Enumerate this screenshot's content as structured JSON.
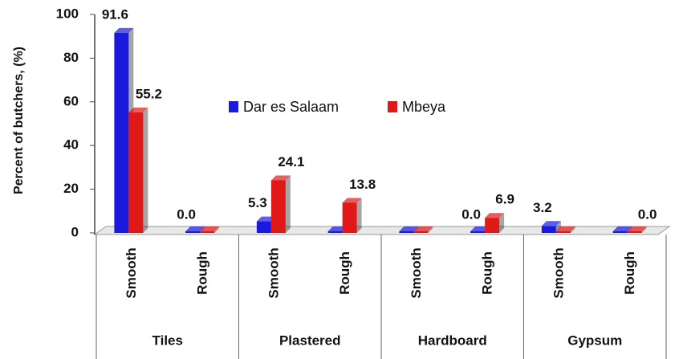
{
  "chart_data": {
    "type": "bar",
    "y_label": "Percent of butchers, (%)",
    "groups": [
      "Tiles",
      "Plastered",
      "Hardboard",
      "Gypsum"
    ],
    "categories": [
      "Smooth",
      "Rough",
      "Smooth",
      "Rough",
      "Smooth",
      "Rough",
      "Smooth",
      "Rough"
    ],
    "series": [
      {
        "name": "Dar es Salaam",
        "color": "#1a1adf",
        "values": [
          91.6,
          0.0,
          5.3,
          0,
          0,
          0.0,
          3.2,
          0
        ],
        "value_labels": [
          "91.6",
          "0.0",
          "5.3",
          null,
          null,
          "0.0",
          "3.2",
          null
        ]
      },
      {
        "name": "Mbeya",
        "color": "#e01818",
        "values": [
          55.2,
          0,
          24.1,
          13.8,
          0,
          6.9,
          0,
          0.0
        ],
        "value_labels": [
          "55.2",
          null,
          "24.1",
          "13.8",
          null,
          "6.9",
          null,
          "0.0"
        ]
      }
    ],
    "ylim": [
      0,
      100
    ],
    "yticks": [
      0,
      20,
      40,
      60,
      80,
      100
    ],
    "grid": false
  }
}
